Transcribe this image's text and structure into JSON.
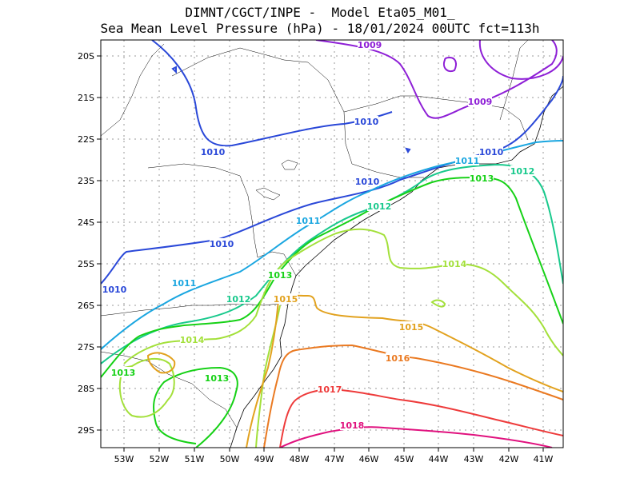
{
  "title_line1": "DIMNT/CGCT/INPE -  Model Eta05_M01_",
  "title_line2": "Sea Mean Level Pressure (hPa) - 18/01/2024 00UTC fct=113h",
  "x_ticks": [
    "53W",
    "52W",
    "51W",
    "50W",
    "49W",
    "48W",
    "47W",
    "46W",
    "45W",
    "44W",
    "43W",
    "42W",
    "41W"
  ],
  "y_ticks": [
    "20S",
    "21S",
    "22S",
    "23S",
    "24S",
    "25S",
    "26S",
    "27S",
    "28S",
    "29S"
  ],
  "isobars": [
    {
      "value": "1009",
      "color": "#8e1fd6"
    },
    {
      "value": "1010",
      "color": "#2a48d8"
    },
    {
      "value": "1011",
      "color": "#1aa6e0"
    },
    {
      "value": "1012",
      "color": "#18c98c"
    },
    {
      "value": "1013",
      "color": "#16d116"
    },
    {
      "value": "1014",
      "color": "#a3e03a"
    },
    {
      "value": "1015",
      "color": "#e2a21f"
    },
    {
      "value": "1016",
      "color": "#ea7a22"
    },
    {
      "value": "1017",
      "color": "#ee3b3b"
    },
    {
      "value": "1018",
      "color": "#e0117e"
    }
  ]
}
